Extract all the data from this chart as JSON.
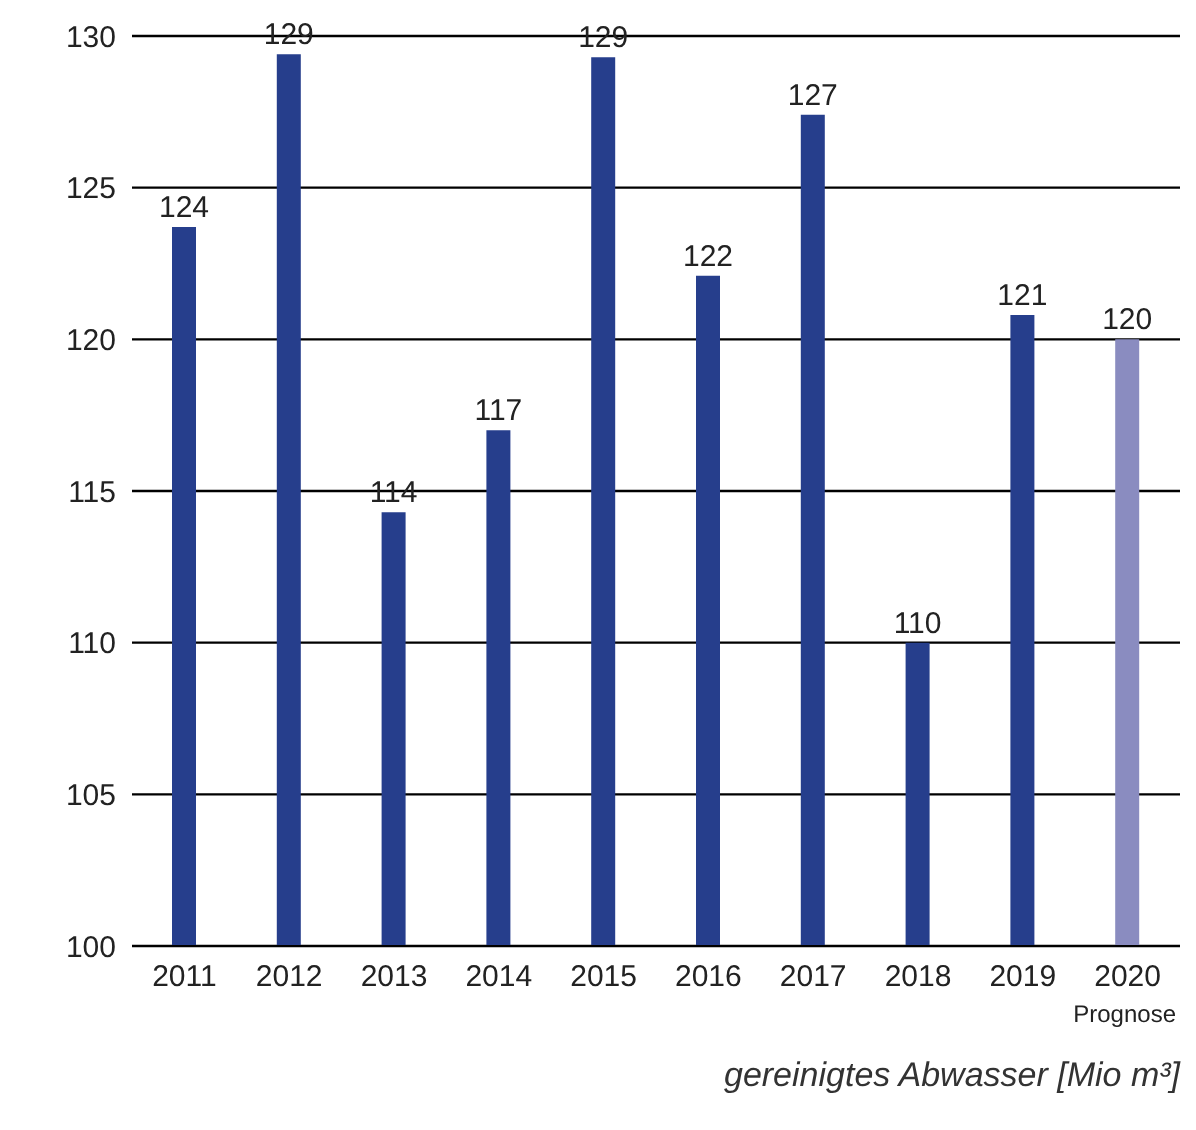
{
  "chart_data": {
    "type": "bar",
    "categories": [
      "2011",
      "2012",
      "2013",
      "2014",
      "2015",
      "2016",
      "2017",
      "2018",
      "2019",
      "2020"
    ],
    "values": [
      123.7,
      129.4,
      114.3,
      117.0,
      129.3,
      122.1,
      127.4,
      110.0,
      120.8,
      120.0
    ],
    "value_labels": [
      "124",
      "129",
      "114",
      "117",
      "129",
      "122",
      "127",
      "110",
      "121",
      "120"
    ],
    "colors": [
      "#263e8c",
      "#263e8c",
      "#263e8c",
      "#263e8c",
      "#263e8c",
      "#263e8c",
      "#263e8c",
      "#263e8c",
      "#263e8c",
      "#8a8cc0"
    ],
    "ylim": [
      100,
      130
    ],
    "yticks": [
      100,
      105,
      110,
      115,
      120,
      125,
      130
    ],
    "grid": "y",
    "annotations": [
      "Prognose",
      "gereinigtes Abwasser [Mio m³]"
    ]
  }
}
